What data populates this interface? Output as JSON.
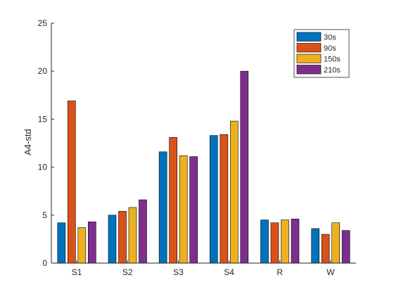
{
  "chart_data": {
    "type": "bar",
    "title": "",
    "xlabel": "",
    "ylabel": "A4-std",
    "categories": [
      "S1",
      "S2",
      "S3",
      "S4",
      "R",
      "W"
    ],
    "ylim": [
      0,
      25
    ],
    "yticks": [
      0,
      5,
      10,
      15,
      20,
      25
    ],
    "grid": false,
    "legend_position": "top-right",
    "series": [
      {
        "name": "30s",
        "color": "#0072BD",
        "values": [
          4.2,
          5.0,
          11.6,
          13.3,
          4.5,
          3.6
        ]
      },
      {
        "name": "90s",
        "color": "#D95319",
        "values": [
          16.9,
          5.4,
          13.1,
          13.4,
          4.2,
          3.0
        ]
      },
      {
        "name": "150s",
        "color": "#EDB120",
        "values": [
          3.7,
          5.8,
          11.2,
          14.8,
          4.5,
          4.2
        ]
      },
      {
        "name": "210s",
        "color": "#7E2F8E",
        "values": [
          4.3,
          6.6,
          11.1,
          20.0,
          4.6,
          3.4
        ]
      }
    ]
  }
}
